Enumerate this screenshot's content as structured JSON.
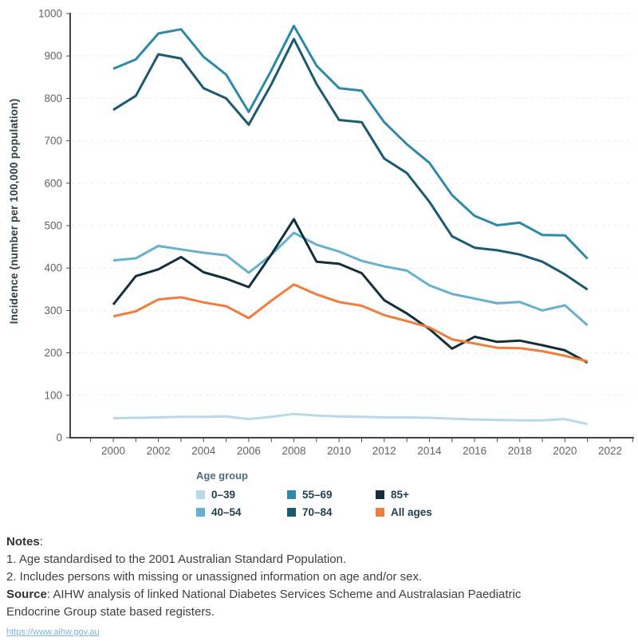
{
  "chart_data": {
    "type": "line",
    "ylabel": "Incidence (number per 100,000 population)",
    "xlabel": "",
    "ylim": [
      0,
      1000
    ],
    "yticks": [
      0,
      100,
      200,
      300,
      400,
      500,
      600,
      700,
      800,
      900,
      1000
    ],
    "xticks": [
      2000,
      2002,
      2004,
      2006,
      2008,
      2010,
      2012,
      2014,
      2016,
      2018,
      2020,
      2022
    ],
    "grid": true,
    "legend_position": "bottom",
    "x": [
      2000,
      2001,
      2002,
      2003,
      2004,
      2005,
      2006,
      2007,
      2008,
      2009,
      2010,
      2011,
      2012,
      2013,
      2014,
      2015,
      2016,
      2017,
      2018,
      2019,
      2020,
      2021
    ],
    "series": [
      {
        "name": "0–39",
        "color": "#b9d9e8",
        "values": [
          46,
          47,
          48,
          49,
          49,
          50,
          44,
          49,
          56,
          52,
          50,
          49,
          48,
          48,
          47,
          45,
          43,
          42,
          41,
          41,
          44,
          32
        ]
      },
      {
        "name": "40–54",
        "color": "#68b0d0",
        "values": [
          418,
          423,
          452,
          444,
          436,
          430,
          389,
          431,
          483,
          455,
          439,
          417,
          404,
          394,
          359,
          339,
          328,
          317,
          320,
          300,
          312,
          265
        ]
      },
      {
        "name": "55–69",
        "color": "#2d89a9",
        "values": [
          870,
          892,
          953,
          963,
          898,
          856,
          768,
          866,
          971,
          877,
          824,
          818,
          744,
          692,
          648,
          572,
          523,
          501,
          507,
          478,
          477,
          422
        ]
      },
      {
        "name": "70–84",
        "color": "#1b5a72",
        "values": [
          773,
          806,
          904,
          894,
          824,
          800,
          738,
          833,
          940,
          834,
          749,
          744,
          658,
          624,
          556,
          475,
          448,
          442,
          432,
          415,
          385,
          349
        ]
      },
      {
        "name": "85+",
        "color": "#142f3c",
        "values": [
          314,
          381,
          397,
          426,
          390,
          375,
          355,
          432,
          515,
          415,
          410,
          388,
          324,
          293,
          256,
          210,
          238,
          226,
          229,
          218,
          206,
          177
        ]
      },
      {
        "name": "All ages",
        "color": "#f07d3b",
        "values": [
          286,
          298,
          326,
          331,
          319,
          310,
          282,
          323,
          361,
          338,
          320,
          311,
          289,
          275,
          260,
          232,
          222,
          212,
          211,
          204,
          193,
          180
        ]
      }
    ]
  },
  "legend": {
    "title": "Age group"
  },
  "notes": {
    "heading": "Notes",
    "heading_suffix": ":",
    "note1": "1. Age standardised to the 2001 Australian Standard Population.",
    "note2": "2. Includes persons with missing or unassigned information on age and/or sex.",
    "source_label": "Source",
    "source_text": ": AIHW analysis of linked National Diabetes Services Scheme and Australasian Paediatric Endocrine Group state based registers.",
    "link": "https://www.aihw.gov.au"
  },
  "colors": {
    "axis_text": "#636363",
    "axis_line": "#434343",
    "gridline": "#e7e7e7",
    "y_title": "#29404d",
    "legend_title": "#4e6e7e",
    "legend_text": "#24404f",
    "notes_text": "#3f3f3f",
    "link": "#7fb2d4"
  }
}
